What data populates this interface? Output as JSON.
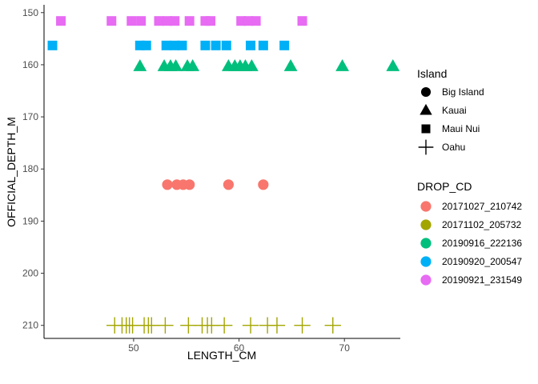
{
  "chart_data": {
    "type": "scatter",
    "title": "",
    "xlabel": "LENGTH_CM",
    "ylabel": "OFFICIAL_DEPTH_M",
    "xlim": [
      41.5,
      75.3
    ],
    "ylim": [
      148.5,
      212.5
    ],
    "y_reversed": true,
    "x_ticks": [
      50,
      60,
      70
    ],
    "y_ticks": [
      150,
      160,
      170,
      180,
      190,
      200,
      210
    ],
    "grid": false,
    "legend_placement": "right",
    "legend_shape": {
      "title": "Island",
      "entries": [
        {
          "label": "Big Island",
          "shape": "circle"
        },
        {
          "label": "Kauai",
          "shape": "triangle"
        },
        {
          "label": "Maui Nui",
          "shape": "square"
        },
        {
          "label": "Oahu",
          "shape": "plus"
        }
      ]
    },
    "legend_color": {
      "title": "DROP_CD",
      "entries": [
        {
          "label": "20171027_210742",
          "color": "#F8766D"
        },
        {
          "label": "20171102_205732",
          "color": "#A3A500"
        },
        {
          "label": "20190916_222136",
          "color": "#00BF7D"
        },
        {
          "label": "20190920_200547",
          "color": "#00B0F6"
        },
        {
          "label": "20190921_231549",
          "color": "#E76BF3"
        }
      ]
    },
    "series": [
      {
        "name": "20171027_210742",
        "island": "Big Island",
        "color": "#F8766D",
        "shape": "circle",
        "x": [
          53.2,
          54.1,
          54.7,
          55.3,
          59.0,
          62.3
        ],
        "y": [
          183,
          183,
          183,
          183,
          183,
          183
        ]
      },
      {
        "name": "20171102_205732",
        "island": "Oahu",
        "color": "#A3A500",
        "shape": "plus",
        "x": [
          48.2,
          48.9,
          49.3,
          49.6,
          49.9,
          51.0,
          51.4,
          51.7,
          53.0,
          55.2,
          56.5,
          57.0,
          57.4,
          58.6,
          61.1,
          62.7,
          63.6,
          66.0,
          68.9
        ],
        "y": [
          210,
          210,
          210,
          210,
          210,
          210,
          210,
          210,
          210,
          210,
          210,
          210,
          210,
          210,
          210,
          210,
          210,
          210,
          210
        ]
      },
      {
        "name": "20190916_222136",
        "island": "Kauai",
        "color": "#00BF7D",
        "shape": "triangle",
        "x": [
          50.6,
          52.9,
          53.5,
          54.0,
          55.1,
          55.6,
          59.0,
          59.6,
          60.1,
          60.6,
          61.2,
          64.9,
          69.8,
          74.6
        ],
        "y": [
          160.3,
          160.3,
          160.3,
          160.3,
          160.3,
          160.3,
          160.3,
          160.3,
          160.3,
          160.3,
          160.3,
          160.3,
          160.3,
          160.3
        ]
      },
      {
        "name": "20190920_200547",
        "island": "Maui Nui",
        "color": "#00B0F6",
        "shape": "square",
        "x": [
          42.3,
          50.6,
          51.2,
          53.1,
          53.9,
          54.6,
          56.8,
          57.8,
          58.8,
          61.1,
          62.3,
          64.3
        ],
        "y": [
          156.3,
          156.3,
          156.3,
          156.3,
          156.3,
          156.3,
          156.3,
          156.3,
          156.3,
          156.3,
          156.3,
          156.3
        ]
      },
      {
        "name": "20190921_231549",
        "island": "Maui Nui",
        "color": "#E76BF3",
        "shape": "square",
        "x": [
          43.1,
          47.9,
          49.8,
          50.7,
          52.4,
          53.2,
          53.9,
          55.3,
          56.8,
          57.3,
          60.2,
          60.9,
          61.6,
          66.0
        ],
        "y": [
          151.6,
          151.6,
          151.6,
          151.6,
          151.6,
          151.6,
          151.6,
          151.6,
          151.6,
          151.6,
          151.6,
          151.6,
          151.6,
          151.6
        ]
      }
    ]
  }
}
